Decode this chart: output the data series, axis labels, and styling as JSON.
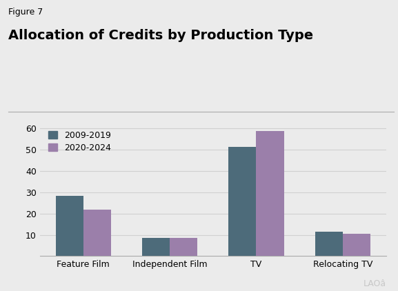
{
  "figure_label": "Figure 7",
  "title": "Allocation of Credits by Production Type",
  "categories": [
    "Feature Film",
    "Independent Film",
    "TV",
    "Relocating TV"
  ],
  "series": [
    {
      "label": "2009-2019",
      "values": [
        28.5,
        8.5,
        51.5,
        11.5
      ],
      "color": "#4d6b7a"
    },
    {
      "label": "2020-2024",
      "values": [
        22.0,
        8.7,
        59.0,
        10.5
      ],
      "color": "#9b7faa"
    }
  ],
  "ylim": [
    0,
    63
  ],
  "yticks": [
    10,
    20,
    30,
    40,
    50,
    60
  ],
  "ytick_top_label": "60%",
  "background_color": "#ebebeb",
  "plot_bg_color": "#ebebeb",
  "bar_width": 0.32,
  "legend_loc": "upper left",
  "figure_label_fontsize": 9,
  "title_fontsize": 14,
  "tick_fontsize": 9,
  "legend_fontsize": 9,
  "watermark": "LAOâ",
  "watermark_color": "#c8c8c8",
  "grid_color": "#d0d0d0"
}
